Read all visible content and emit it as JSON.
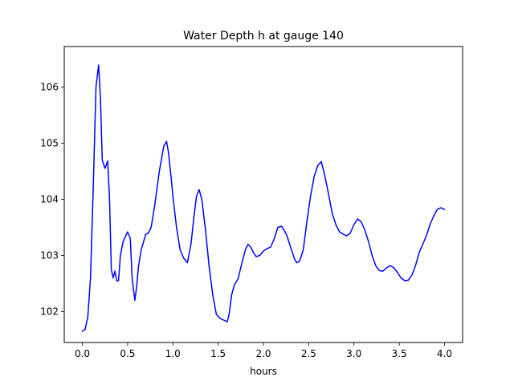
{
  "chart_data": {
    "type": "line",
    "title": "Water Depth h at gauge 140",
    "xlabel": "hours",
    "ylabel": "",
    "xlim": [
      -0.2,
      4.2
    ],
    "ylim": [
      101.45,
      106.72
    ],
    "x_ticks": [
      0.0,
      0.5,
      1.0,
      1.5,
      2.0,
      2.5,
      3.0,
      3.5,
      4.0
    ],
    "x_tick_labels": [
      "0.0",
      "0.5",
      "1.0",
      "1.5",
      "2.0",
      "2.5",
      "3.0",
      "3.5",
      "4.0"
    ],
    "y_ticks": [
      102,
      103,
      104,
      105,
      106
    ],
    "y_tick_labels": [
      "102",
      "103",
      "104",
      "105",
      "106"
    ],
    "grid": false,
    "series": [
      {
        "color": "#0000ff",
        "x": [
          0.0,
          0.03,
          0.06,
          0.09,
          0.12,
          0.15,
          0.18,
          0.2,
          0.22,
          0.25,
          0.28,
          0.3,
          0.32,
          0.34,
          0.36,
          0.38,
          0.4,
          0.42,
          0.45,
          0.5,
          0.53,
          0.55,
          0.58,
          0.6,
          0.62,
          0.65,
          0.7,
          0.73,
          0.76,
          0.8,
          0.85,
          0.9,
          0.93,
          0.95,
          0.98,
          1.0,
          1.04,
          1.08,
          1.12,
          1.16,
          1.2,
          1.23,
          1.26,
          1.29,
          1.32,
          1.36,
          1.4,
          1.44,
          1.48,
          1.52,
          1.56,
          1.6,
          1.62,
          1.65,
          1.68,
          1.72,
          1.76,
          1.8,
          1.83,
          1.86,
          1.89,
          1.92,
          1.96,
          2.0,
          2.04,
          2.08,
          2.12,
          2.16,
          2.2,
          2.23,
          2.26,
          2.3,
          2.34,
          2.37,
          2.4,
          2.44,
          2.48,
          2.52,
          2.56,
          2.6,
          2.64,
          2.68,
          2.7,
          2.73,
          2.76,
          2.8,
          2.84,
          2.88,
          2.92,
          2.96,
          3.0,
          3.04,
          3.08,
          3.12,
          3.16,
          3.2,
          3.24,
          3.28,
          3.32,
          3.36,
          3.4,
          3.44,
          3.48,
          3.52,
          3.56,
          3.6,
          3.64,
          3.68,
          3.72,
          3.76,
          3.8,
          3.84,
          3.88,
          3.92,
          3.96,
          4.0
        ],
        "values": [
          101.65,
          101.68,
          101.9,
          102.6,
          104.2,
          106.0,
          106.39,
          105.8,
          104.7,
          104.55,
          104.68,
          104.0,
          102.75,
          102.6,
          102.72,
          102.55,
          102.55,
          103.0,
          103.25,
          103.42,
          103.3,
          102.6,
          102.2,
          102.45,
          102.8,
          103.1,
          103.38,
          103.4,
          103.5,
          103.9,
          104.5,
          104.95,
          105.03,
          104.85,
          104.4,
          104.05,
          103.5,
          103.1,
          102.95,
          102.87,
          103.2,
          103.65,
          104.05,
          104.17,
          104.0,
          103.45,
          102.8,
          102.3,
          101.95,
          101.88,
          101.85,
          101.82,
          101.95,
          102.3,
          102.48,
          102.58,
          102.85,
          103.1,
          103.2,
          103.15,
          103.05,
          102.98,
          103.0,
          103.08,
          103.12,
          103.15,
          103.3,
          103.5,
          103.52,
          103.45,
          103.35,
          103.15,
          102.95,
          102.87,
          102.9,
          103.1,
          103.6,
          104.05,
          104.4,
          104.6,
          104.67,
          104.4,
          104.25,
          104.0,
          103.75,
          103.55,
          103.42,
          103.38,
          103.35,
          103.4,
          103.55,
          103.65,
          103.6,
          103.45,
          103.25,
          103.0,
          102.82,
          102.73,
          102.72,
          102.78,
          102.82,
          102.78,
          102.7,
          102.6,
          102.55,
          102.56,
          102.65,
          102.82,
          103.05,
          103.2,
          103.35,
          103.55,
          103.7,
          103.82,
          103.85,
          103.82
        ]
      }
    ]
  }
}
